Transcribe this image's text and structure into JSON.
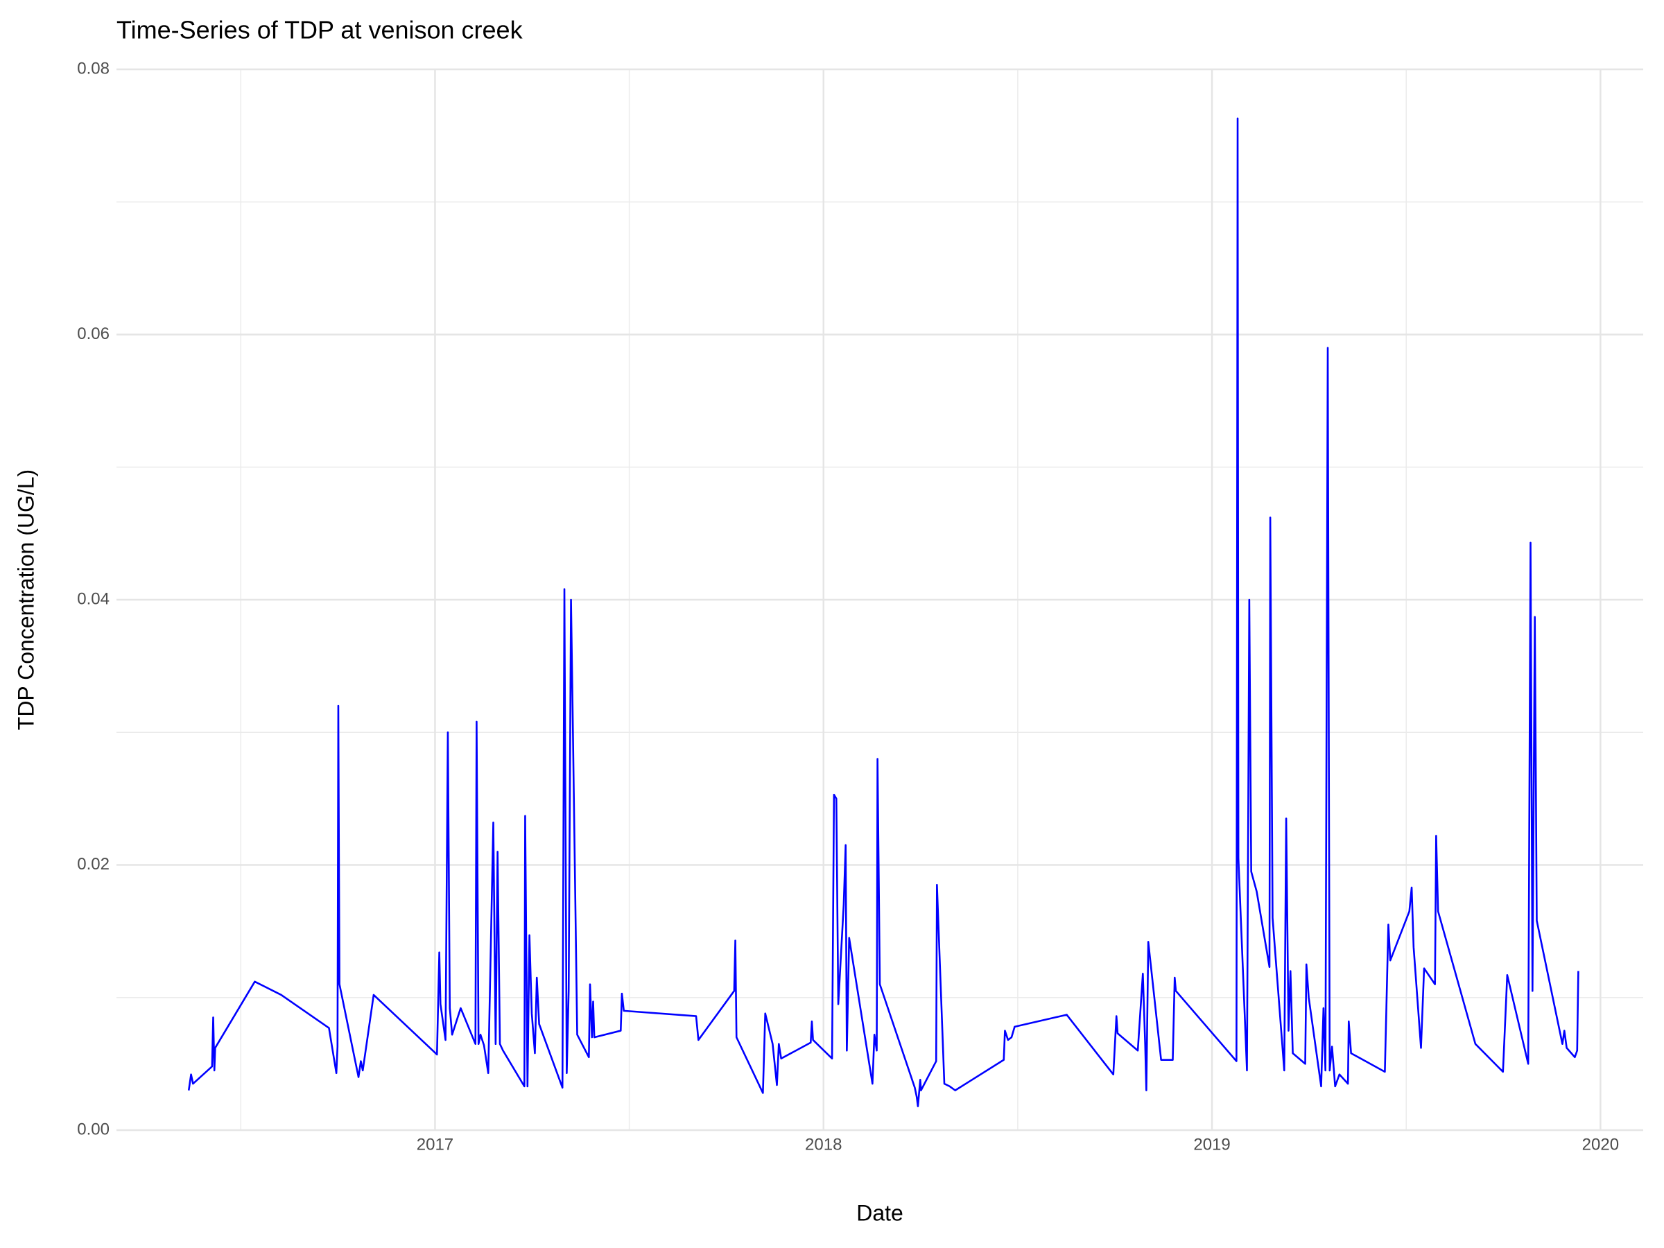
{
  "chart_data": {
    "type": "line",
    "title": "Time-Series of TDP at venison creek",
    "x_label": "Date",
    "y_label": "TDP Concentration (UG/L)",
    "color": "#0000ff",
    "grid": true,
    "xlim": [
      2016.18,
      2020.11
    ],
    "xticks": [
      2017,
      2018,
      2019,
      2020
    ],
    "ylim": [
      0,
      0.08
    ],
    "yticks": [
      {
        "value": 0,
        "label": "0.00"
      },
      {
        "value": 0.02,
        "label": "0.02"
      },
      {
        "value": 0.04,
        "label": "0.04"
      },
      {
        "value": 0.06,
        "label": "0.06"
      },
      {
        "value": 0.08,
        "label": "0.08"
      }
    ],
    "x": [
      2016.366,
      2016.372,
      2016.377,
      2016.426,
      2016.429,
      2016.432,
      2016.434,
      2016.536,
      2016.604,
      2016.727,
      2016.746,
      2016.749,
      2016.751,
      2016.754,
      2016.803,
      2016.809,
      2016.814,
      2016.842,
      2017.005,
      2017.011,
      2017.014,
      2017.027,
      2017.033,
      2017.038,
      2017.044,
      2017.066,
      2017.104,
      2017.107,
      2017.112,
      2017.117,
      2017.126,
      2017.137,
      2017.15,
      2017.156,
      2017.161,
      2017.167,
      2017.175,
      2017.23,
      2017.232,
      2017.238,
      2017.243,
      2017.249,
      2017.257,
      2017.262,
      2017.268,
      2017.328,
      2017.333,
      2017.339,
      2017.344,
      2017.35,
      2017.355,
      2017.366,
      2017.396,
      2017.399,
      2017.404,
      2017.407,
      2017.41,
      2017.478,
      2017.481,
      2017.486,
      2017.672,
      2017.678,
      2017.77,
      2017.773,
      2017.776,
      2017.844,
      2017.85,
      2017.869,
      2017.88,
      2017.885,
      2017.891,
      2017.967,
      2017.97,
      2017.973,
      2018.022,
      2018.027,
      2018.033,
      2018.038,
      2018.052,
      2018.057,
      2018.06,
      2018.066,
      2018.126,
      2018.131,
      2018.137,
      2018.139,
      2018.145,
      2018.235,
      2018.24,
      2018.243,
      2018.249,
      2018.251,
      2018.29,
      2018.292,
      2018.311,
      2018.325,
      2018.339,
      2018.464,
      2018.467,
      2018.475,
      2018.484,
      2018.492,
      2018.626,
      2018.746,
      2018.754,
      2018.757,
      2018.809,
      2018.822,
      2018.828,
      2018.831,
      2018.836,
      2018.869,
      2018.899,
      2018.904,
      2018.907,
      2019.063,
      2019.066,
      2019.068,
      2019.09,
      2019.096,
      2019.101,
      2019.115,
      2019.148,
      2019.15,
      2019.156,
      2019.186,
      2019.191,
      2019.197,
      2019.202,
      2019.208,
      2019.24,
      2019.243,
      2019.249,
      2019.281,
      2019.287,
      2019.292,
      2019.298,
      2019.303,
      2019.309,
      2019.317,
      2019.328,
      2019.35,
      2019.352,
      2019.358,
      2019.445,
      2019.454,
      2019.459,
      2019.508,
      2019.514,
      2019.519,
      2019.538,
      2019.546,
      2019.574,
      2019.577,
      2019.582,
      2019.678,
      2019.749,
      2019.76,
      2019.814,
      2019.82,
      2019.825,
      2019.831,
      2019.836,
      2019.902,
      2019.907,
      2019.913,
      2019.934,
      2019.94,
      2019.943
    ],
    "values": [
      0.003,
      0.0042,
      0.0035,
      0.0048,
      0.0085,
      0.0045,
      0.0062,
      0.0112,
      0.0102,
      0.0077,
      0.0043,
      0.0063,
      0.032,
      0.011,
      0.004,
      0.0052,
      0.0045,
      0.0102,
      0.0057,
      0.0134,
      0.0095,
      0.0068,
      0.03,
      0.0092,
      0.0072,
      0.0092,
      0.0065,
      0.0308,
      0.0065,
      0.0072,
      0.0064,
      0.0043,
      0.0232,
      0.0065,
      0.021,
      0.0065,
      0.006,
      0.0033,
      0.0237,
      0.0033,
      0.0147,
      0.0088,
      0.0058,
      0.0115,
      0.008,
      0.0032,
      0.0408,
      0.0043,
      0.0105,
      0.04,
      0.03,
      0.0072,
      0.0055,
      0.011,
      0.007,
      0.0097,
      0.007,
      0.0075,
      0.0103,
      0.009,
      0.0086,
      0.0068,
      0.0105,
      0.0143,
      0.007,
      0.0028,
      0.0088,
      0.0065,
      0.0034,
      0.0065,
      0.0054,
      0.0066,
      0.0082,
      0.0068,
      0.0054,
      0.0253,
      0.025,
      0.0095,
      0.017,
      0.0215,
      0.006,
      0.0145,
      0.0035,
      0.0072,
      0.006,
      0.028,
      0.011,
      0.0032,
      0.0025,
      0.0018,
      0.0038,
      0.003,
      0.0052,
      0.0185,
      0.0035,
      0.0033,
      0.003,
      0.0053,
      0.0075,
      0.0068,
      0.007,
      0.0078,
      0.0087,
      0.0042,
      0.0086,
      0.0073,
      0.006,
      0.0118,
      0.0065,
      0.003,
      0.0142,
      0.0053,
      0.0053,
      0.0115,
      0.0105,
      0.0052,
      0.0763,
      0.0205,
      0.0045,
      0.04,
      0.0195,
      0.018,
      0.0123,
      0.0462,
      0.016,
      0.0045,
      0.0235,
      0.0075,
      0.012,
      0.0058,
      0.005,
      0.0125,
      0.01,
      0.0033,
      0.0092,
      0.0045,
      0.059,
      0.0045,
      0.0063,
      0.0033,
      0.0042,
      0.0035,
      0.0082,
      0.0058,
      0.0044,
      0.0155,
      0.0128,
      0.0165,
      0.0183,
      0.0138,
      0.0062,
      0.0122,
      0.011,
      0.0222,
      0.0165,
      0.0065,
      0.0044,
      0.0117,
      0.005,
      0.0443,
      0.0105,
      0.0387,
      0.0158,
      0.0065,
      0.0075,
      0.0062,
      0.0055,
      0.006,
      0.012
    ]
  }
}
